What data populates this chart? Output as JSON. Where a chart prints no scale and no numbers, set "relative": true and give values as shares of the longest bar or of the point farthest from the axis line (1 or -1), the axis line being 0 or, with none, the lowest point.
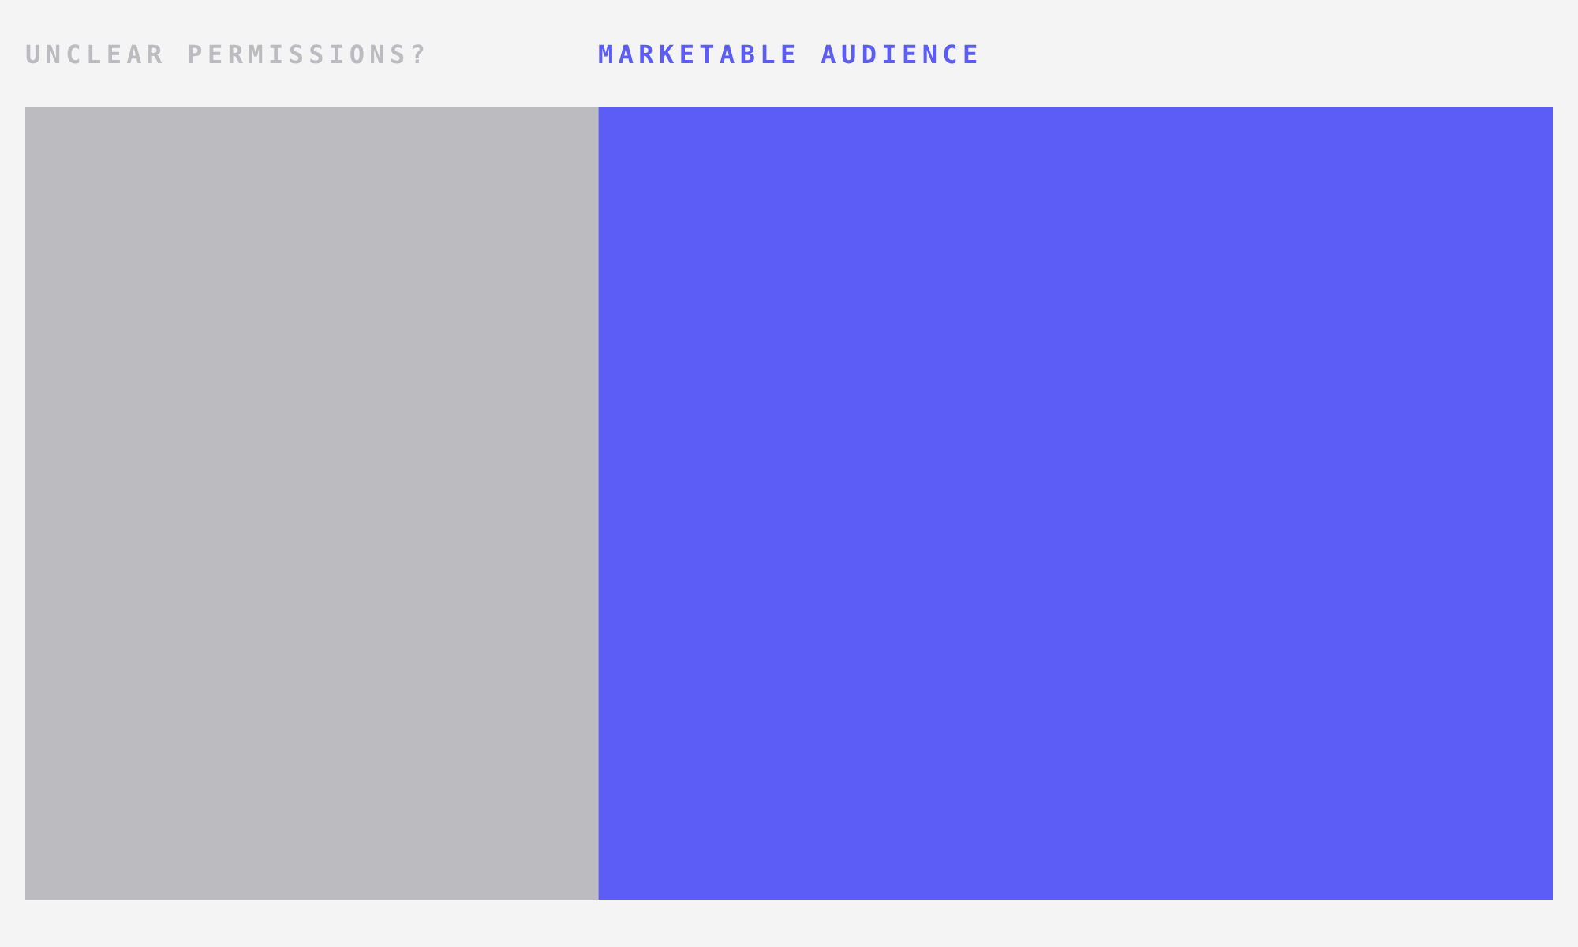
{
  "chart_data": {
    "type": "bar",
    "orientation": "horizontal",
    "stacked": true,
    "relative": true,
    "categories": [
      null
    ],
    "series": [
      {
        "name": "UNCLEAR PERMISSIONS?",
        "color": "#bcbcc0",
        "values": [
          0.375
        ]
      },
      {
        "name": "MARKETABLE AUDIENCE",
        "color": "#5c5cf6",
        "values": [
          0.625
        ]
      }
    ]
  }
}
